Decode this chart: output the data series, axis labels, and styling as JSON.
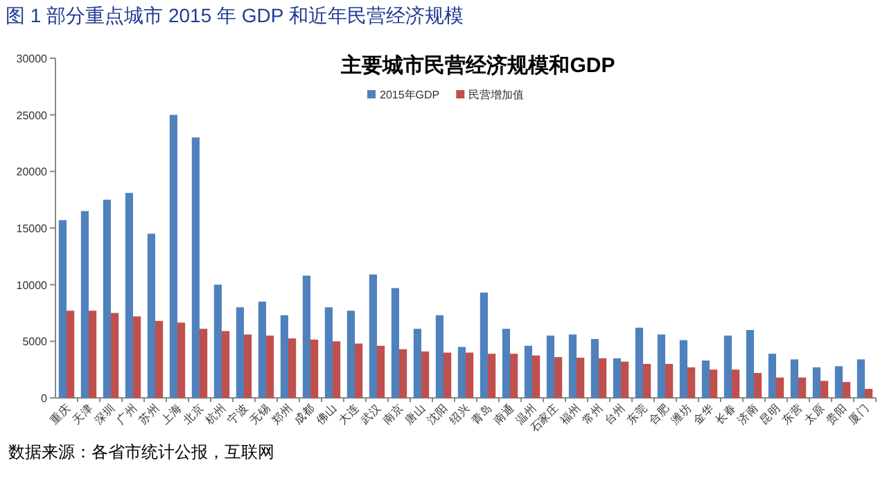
{
  "chart_data": {
    "type": "bar",
    "title": "图 1    部分重点城市 2015 年 GDP 和近年民营经济规模",
    "subtitle": "主要城市民营经济规模和GDP",
    "categories": [
      "重庆",
      "天津",
      "深圳",
      "广州",
      "苏州",
      "上海",
      "北京",
      "杭州",
      "宁波",
      "无锡",
      "郑州",
      "成都",
      "佛山",
      "大连",
      "武汉",
      "南京",
      "唐山",
      "沈阳",
      "绍兴",
      "青岛",
      "南通",
      "温州",
      "石家庄",
      "福州",
      "常州",
      "台州",
      "东莞",
      "合肥",
      "潍坊",
      "金华",
      "长春",
      "济南",
      "昆明",
      "东营",
      "太原",
      "贵阳",
      "厦门"
    ],
    "series": [
      {
        "name": "2015年GDP",
        "color": "#4f81bd",
        "values": [
          15700,
          16500,
          17500,
          18100,
          14500,
          25000,
          23000,
          10000,
          8000,
          8500,
          7300,
          10800,
          8000,
          7700,
          10900,
          9700,
          6100,
          7300,
          4500,
          9300,
          6100,
          4600,
          5500,
          5600,
          5200,
          3500,
          6200,
          5600,
          5100,
          3300,
          5500,
          6000,
          3900,
          3400,
          2700,
          2800,
          3400
        ]
      },
      {
        "name": "民营增加值",
        "color": "#c0504d",
        "values": [
          7700,
          7700,
          7500,
          7200,
          6800,
          6650,
          6100,
          5900,
          5600,
          5500,
          5250,
          5150,
          5000,
          4800,
          4600,
          4300,
          4100,
          4000,
          4000,
          3900,
          3900,
          3750,
          3600,
          3550,
          3500,
          3200,
          3000,
          3000,
          2700,
          2500,
          2500,
          2200,
          1800,
          1800,
          1500,
          1400,
          800
        ]
      }
    ],
    "ylim": [
      0,
      30000
    ],
    "yticks": [
      0,
      5000,
      10000,
      15000,
      20000,
      25000,
      30000
    ],
    "grid": false,
    "legend": "top",
    "annotations": [
      "数据来源：各省市统计公报，互联网"
    ]
  }
}
